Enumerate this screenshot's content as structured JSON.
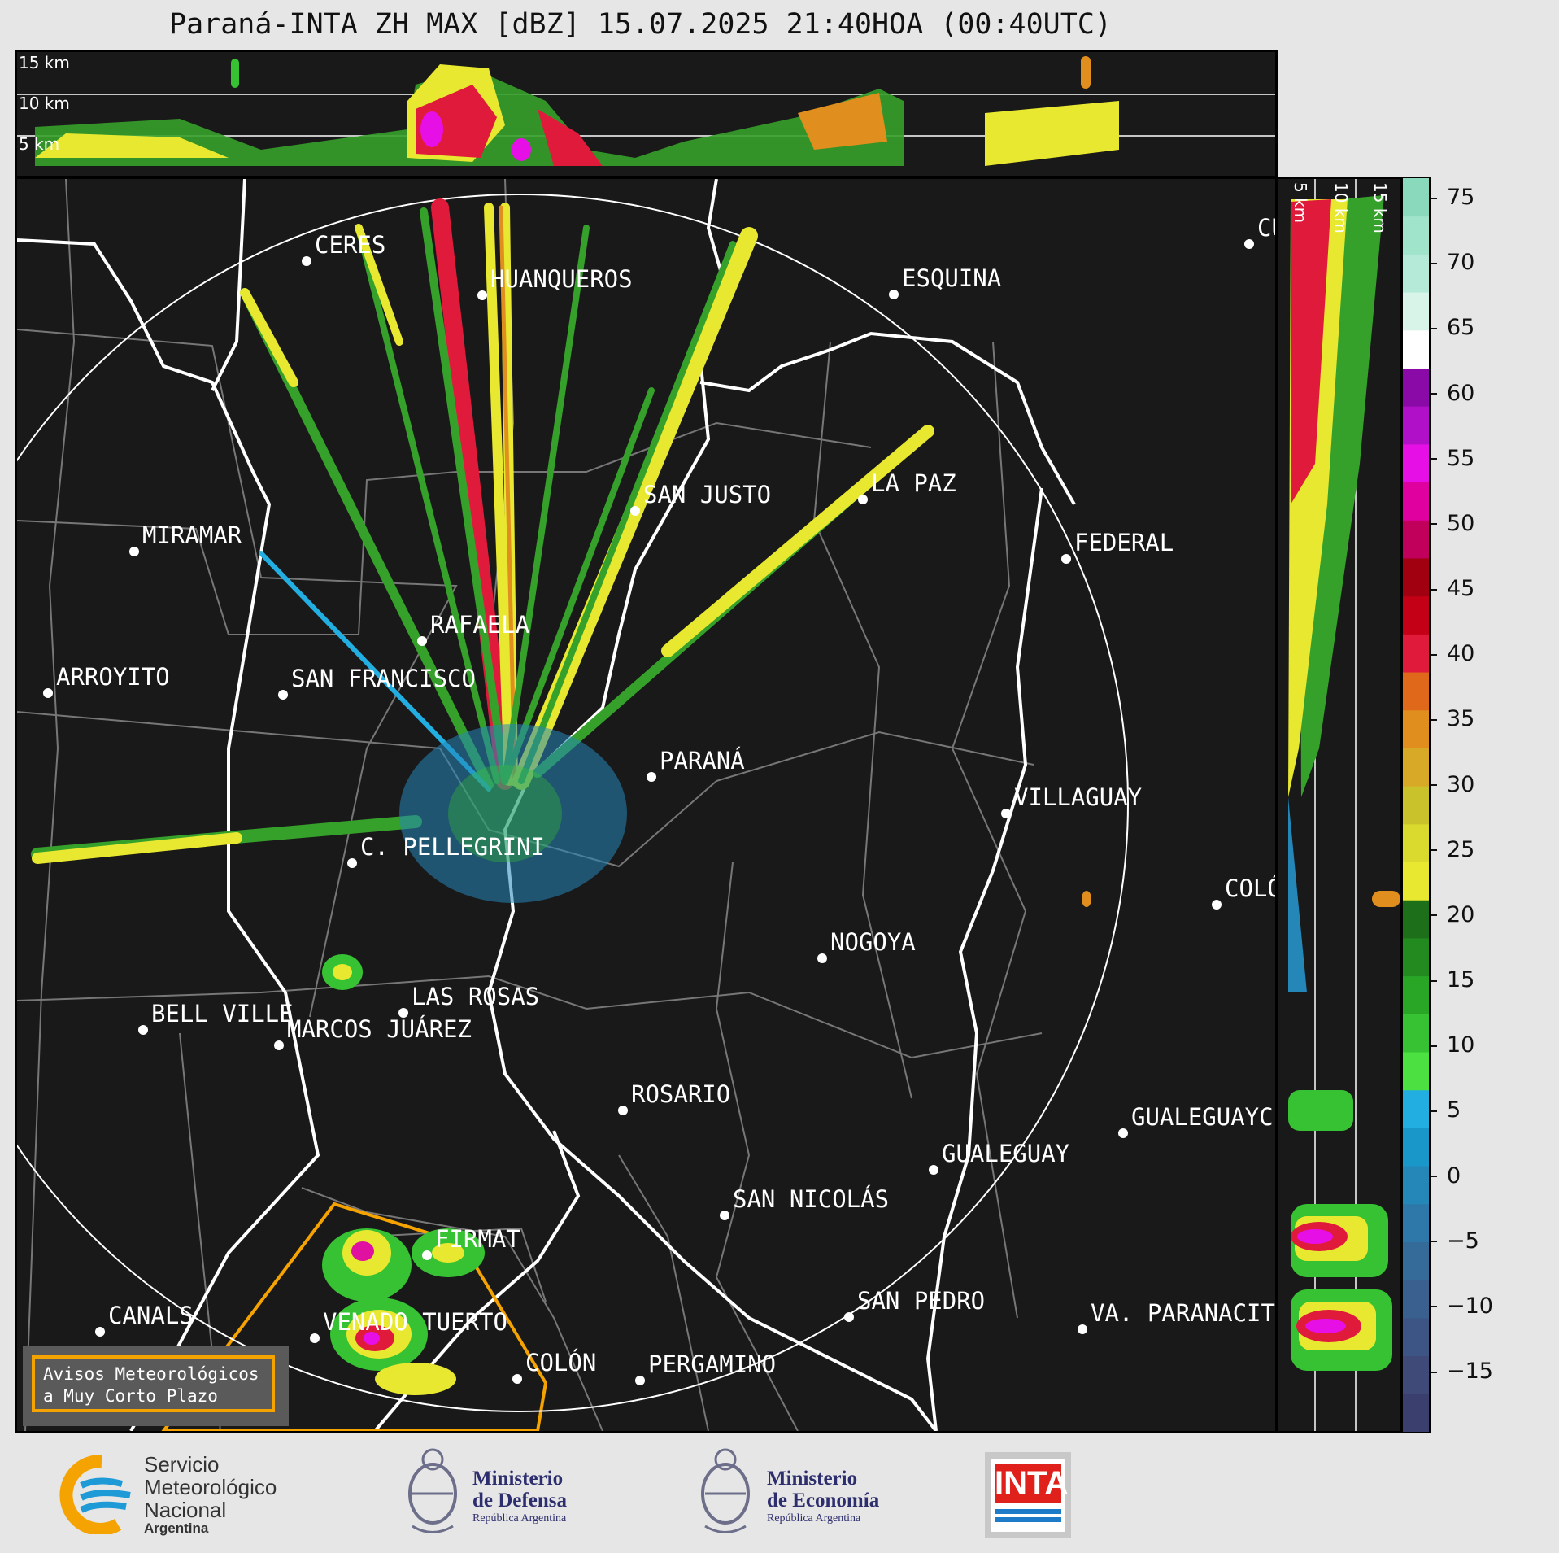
{
  "title": "Paraná-INTA ZH MAX [dBZ] 15.07.2025 21:40HOA (00:40UTC)",
  "top_panel": {
    "height_labels": [
      "15 km",
      "10 km",
      "5 km"
    ]
  },
  "side_panel": {
    "height_labels": [
      "5 km",
      "10 km",
      "15 km"
    ]
  },
  "cities": [
    {
      "name": "CERES"
    },
    {
      "name": "HUANQUEROS"
    },
    {
      "name": "ESQUINA"
    },
    {
      "name": "CU"
    },
    {
      "name": "SAN JUSTO"
    },
    {
      "name": "LA PAZ"
    },
    {
      "name": "FEDERAL"
    },
    {
      "name": "MIRAMAR"
    },
    {
      "name": "RAFAELA"
    },
    {
      "name": "ARROYITO"
    },
    {
      "name": "SAN FRANCISCO"
    },
    {
      "name": "PARANÁ"
    },
    {
      "name": "VILLAGUAY"
    },
    {
      "name": "C. PELLEGRINI"
    },
    {
      "name": "COLÓ"
    },
    {
      "name": "NOGOYA"
    },
    {
      "name": "LAS ROSAS"
    },
    {
      "name": "BELL VILLE"
    },
    {
      "name": "MARCOS JUÁREZ"
    },
    {
      "name": "ROSARIO"
    },
    {
      "name": "GUALEGUAYC"
    },
    {
      "name": "GUALEGUAY"
    },
    {
      "name": "SAN NICOLÁS"
    },
    {
      "name": "FIRMAT"
    },
    {
      "name": "CANALS"
    },
    {
      "name": "SAN PEDRO"
    },
    {
      "name": "VENADO TUERTO"
    },
    {
      "name": "VA. PARANACIT"
    },
    {
      "name": "COLÓN"
    },
    {
      "name": "PERGAMINO"
    }
  ],
  "colorbar": {
    "ticks": [
      "75",
      "70",
      "65",
      "60",
      "55",
      "50",
      "45",
      "40",
      "35",
      "30",
      "25",
      "20",
      "15",
      "10",
      "5",
      "0",
      "−5",
      "−10",
      "−15"
    ],
    "colors": [
      "#3b3f6e",
      "#404a78",
      "#3d5585",
      "#39608f",
      "#356b99",
      "#2d78a8",
      "#2586b8",
      "#1a97c9",
      "#22aee0",
      "#4ce041",
      "#36c232",
      "#2aa627",
      "#228a1f",
      "#1d7019",
      "#e8e830",
      "#d9d92e",
      "#c9c22b",
      "#d7a926",
      "#e08f1f",
      "#e0681a",
      "#e01a3a",
      "#c40016",
      "#a00010",
      "#c0005a",
      "#e000a0",
      "#e610e6",
      "#b010c8",
      "#8a0aa8",
      "#ffffff",
      "#d8f4e8",
      "#b6ead8",
      "#a0e4cc",
      "#8ad9bd"
    ]
  },
  "alert": {
    "line1": "Avisos Meteorológicos",
    "line2": "a Muy Corto Plazo"
  },
  "logos": {
    "smn": [
      "Servicio",
      "Meteorológico",
      "Nacional",
      "Argentina"
    ],
    "defensa": [
      "Ministerio",
      "de Defensa",
      "República Argentina"
    ],
    "economia": [
      "Ministerio",
      "de Economía",
      "República Argentina"
    ],
    "inta": "INTA"
  },
  "colors": {
    "panel_bg": "#191919",
    "alert_border": "#f5a300",
    "smn_orange": "#f5a300",
    "smn_blue": "#1e9ad6",
    "inta_red": "#e0201b"
  }
}
